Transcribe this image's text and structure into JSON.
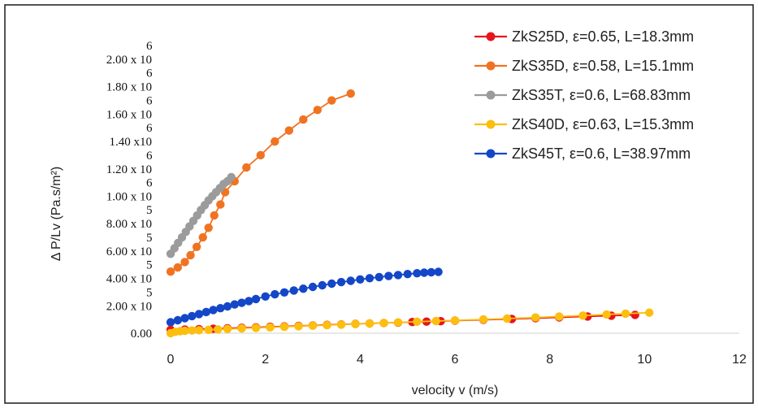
{
  "chart_data": {
    "type": "line",
    "title": "",
    "xlabel": "velocity v (m/s)",
    "ylabel": "Δ P/Lv (Pa.s/m²)",
    "xlim": [
      0,
      12
    ],
    "ylim": [
      0,
      2000000
    ],
    "grid": false,
    "legend_position": "top-right",
    "x_ticks": [
      "0",
      "2",
      "4",
      "6",
      "8",
      "10",
      "12"
    ],
    "y_ticks": [
      {
        "value": 0,
        "mantissa": "0.00",
        "exponent": ""
      },
      {
        "value": 200000,
        "mantissa": "2.00 x 10",
        "exponent": "5"
      },
      {
        "value": 400000,
        "mantissa": "4.00 x 10",
        "exponent": "5"
      },
      {
        "value": 600000,
        "mantissa": "6.00 x 10",
        "exponent": "5"
      },
      {
        "value": 800000,
        "mantissa": "8.00 x 10",
        "exponent": "5"
      },
      {
        "value": 1000000,
        "mantissa": "1.00 x 10",
        "exponent": "6"
      },
      {
        "value": 1200000,
        "mantissa": "1.20 x 10",
        "exponent": "6"
      },
      {
        "value": 1400000,
        "mantissa": "1.40 x10",
        "exponent": "6"
      },
      {
        "value": 1600000,
        "mantissa": "1.60 x 10",
        "exponent": "6"
      },
      {
        "value": 1800000,
        "mantissa": "1.80 x 10",
        "exponent": "6"
      },
      {
        "value": 2000000,
        "mantissa": "2.00 x 10",
        "exponent": "6"
      }
    ],
    "series": [
      {
        "name": "ZkS25D, ε=0.65, L=18.3mm",
        "color": "#e8141c",
        "x": [
          0.0,
          0.3,
          0.6,
          0.9,
          1.2,
          1.5,
          1.8,
          2.1,
          2.4,
          2.7,
          3.0,
          3.3,
          3.6,
          3.9,
          4.2,
          4.5,
          4.8,
          5.1,
          5.4,
          5.7,
          6.0,
          6.6,
          7.2,
          7.7,
          8.2,
          8.8,
          9.3,
          9.8
        ],
        "y": [
          25000,
          27000,
          30000,
          33000,
          36000,
          40000,
          43000,
          47000,
          50000,
          54000,
          57000,
          61000,
          64000,
          68000,
          71000,
          75000,
          78000,
          82000,
          85000,
          88000,
          92000,
          98000,
          104000,
          110000,
          116000,
          122000,
          128000,
          134000
        ]
      },
      {
        "name": "ZkS35D, ε=0.58, L=15.1mm",
        "color": "#f07322",
        "x": [
          0.0,
          0.15,
          0.3,
          0.42,
          0.55,
          0.68,
          0.8,
          0.92,
          1.05,
          1.15,
          1.35,
          1.6,
          1.9,
          2.2,
          2.5,
          2.8,
          3.1,
          3.4,
          3.8
        ],
        "y": [
          450000,
          480000,
          520000,
          570000,
          630000,
          700000,
          770000,
          860000,
          940000,
          1030000,
          1110000,
          1210000,
          1300000,
          1400000,
          1480000,
          1560000,
          1630000,
          1700000,
          1750000
        ]
      },
      {
        "name": "ZkS35T, ε=0.6, L=68.83mm",
        "color": "#9b9b9b",
        "x": [
          0.0,
          0.08,
          0.16,
          0.24,
          0.32,
          0.4,
          0.48,
          0.56,
          0.64,
          0.72,
          0.8,
          0.88,
          0.96,
          1.04,
          1.12,
          1.2,
          1.28
        ],
        "y": [
          580000,
          620000,
          660000,
          700000,
          740000,
          780000,
          820000,
          860000,
          900000,
          935000,
          970000,
          1000000,
          1030000,
          1060000,
          1090000,
          1110000,
          1140000
        ]
      },
      {
        "name": "ZkS40D, ε=0.63, L=15.3mm",
        "color": "#fcbf0f",
        "x": [
          0.0,
          0.1,
          0.2,
          0.3,
          0.45,
          0.6,
          0.8,
          1.0,
          1.2,
          1.5,
          1.8,
          2.1,
          2.4,
          2.7,
          3.0,
          3.3,
          3.6,
          3.9,
          4.2,
          4.5,
          4.8,
          5.2,
          5.6,
          6.0,
          6.6,
          7.1,
          7.7,
          8.2,
          8.7,
          9.2,
          9.6,
          10.1
        ],
        "y": [
          0,
          10000,
          15000,
          18000,
          20000,
          22000,
          25000,
          28000,
          31000,
          35000,
          39000,
          43000,
          47000,
          51000,
          55000,
          59000,
          63000,
          67000,
          71000,
          75000,
          79000,
          84000,
          89000,
          94000,
          101000,
          107000,
          115000,
          122000,
          129000,
          137000,
          143000,
          150000
        ]
      },
      {
        "name": "ZkS45T, ε=0.6, L=38.97mm",
        "color": "#1447c8",
        "x": [
          0.0,
          0.15,
          0.3,
          0.45,
          0.6,
          0.75,
          0.9,
          1.05,
          1.2,
          1.35,
          1.5,
          1.65,
          1.8,
          2.0,
          2.2,
          2.4,
          2.6,
          2.8,
          3.0,
          3.2,
          3.4,
          3.6,
          3.8,
          4.0,
          4.2,
          4.4,
          4.6,
          4.8,
          5.0,
          5.2,
          5.35,
          5.5,
          5.65
        ],
        "y": [
          80000,
          95000,
          110000,
          125000,
          140000,
          155000,
          170000,
          183000,
          196000,
          210000,
          222000,
          235000,
          250000,
          268000,
          284000,
          298000,
          312000,
          325000,
          338000,
          350000,
          362000,
          373000,
          383000,
          393000,
          402000,
          410000,
          418000,
          425000,
          432000,
          438000,
          442000,
          445000,
          448000
        ]
      }
    ]
  }
}
